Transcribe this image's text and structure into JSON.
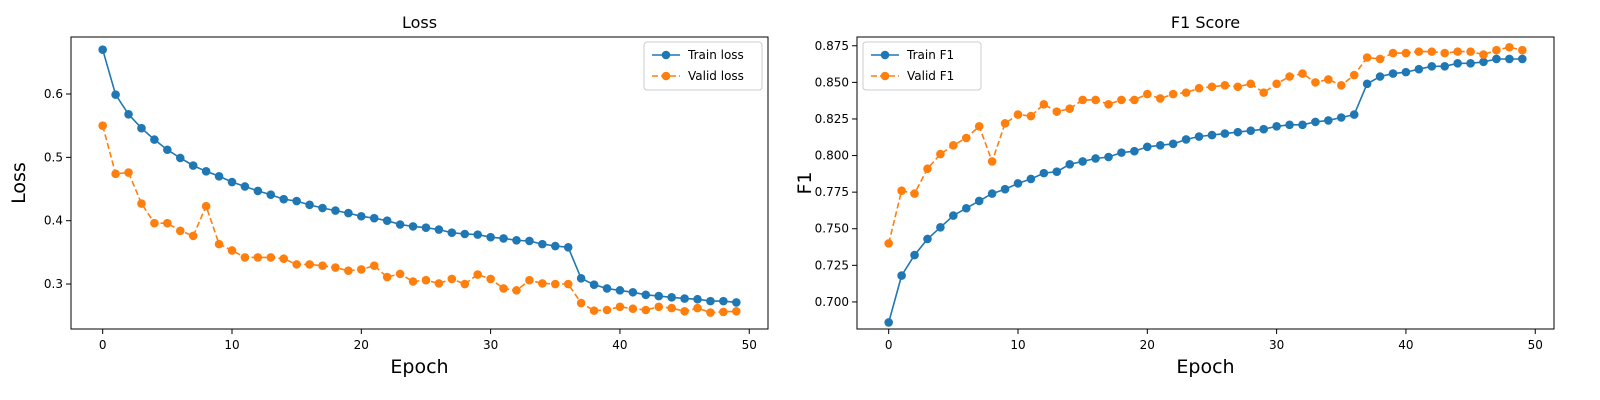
{
  "colors": {
    "train": "#1f77b4",
    "valid": "#ff7f0e"
  },
  "chart_data": [
    {
      "type": "line",
      "title": "Loss",
      "xlabel": "Epoch",
      "ylabel": "Loss",
      "xlim": [
        -2.45,
        51.45
      ],
      "ylim": [
        0.229,
        0.69
      ],
      "xticks": [
        0,
        10,
        20,
        30,
        40,
        50
      ],
      "yticks": [
        0.3,
        0.4,
        0.5,
        0.6
      ],
      "legend": "top-right",
      "grid": false,
      "x": [
        0,
        1,
        2,
        3,
        4,
        5,
        6,
        7,
        8,
        9,
        10,
        11,
        12,
        13,
        14,
        15,
        16,
        17,
        18,
        19,
        20,
        21,
        22,
        23,
        24,
        25,
        26,
        27,
        28,
        29,
        30,
        31,
        32,
        33,
        34,
        35,
        36,
        37,
        38,
        39,
        40,
        41,
        42,
        43,
        44,
        45,
        46,
        47,
        48,
        49
      ],
      "series": [
        {
          "name": "Train loss",
          "style": "solid",
          "values": [
            0.67,
            0.599,
            0.568,
            0.546,
            0.528,
            0.512,
            0.499,
            0.487,
            0.478,
            0.47,
            0.461,
            0.454,
            0.447,
            0.441,
            0.434,
            0.431,
            0.425,
            0.42,
            0.416,
            0.412,
            0.407,
            0.404,
            0.4,
            0.394,
            0.391,
            0.389,
            0.386,
            0.381,
            0.379,
            0.378,
            0.374,
            0.372,
            0.369,
            0.368,
            0.363,
            0.36,
            0.358,
            0.309,
            0.299,
            0.293,
            0.29,
            0.287,
            0.283,
            0.281,
            0.279,
            0.277,
            0.276,
            0.273,
            0.273,
            0.271
          ]
        },
        {
          "name": "Valid loss",
          "style": "dashed",
          "values": [
            0.55,
            0.474,
            0.476,
            0.427,
            0.396,
            0.396,
            0.384,
            0.376,
            0.423,
            0.363,
            0.353,
            0.342,
            0.342,
            0.342,
            0.34,
            0.331,
            0.331,
            0.329,
            0.326,
            0.321,
            0.323,
            0.329,
            0.311,
            0.316,
            0.304,
            0.306,
            0.301,
            0.308,
            0.3,
            0.315,
            0.308,
            0.293,
            0.29,
            0.306,
            0.301,
            0.3,
            0.3,
            0.27,
            0.258,
            0.259,
            0.264,
            0.261,
            0.259,
            0.264,
            0.262,
            0.257,
            0.262,
            0.255,
            0.256,
            0.257
          ]
        }
      ]
    },
    {
      "type": "line",
      "title": "F1 Score",
      "xlabel": "Epoch",
      "ylabel": "F1",
      "xlim": [
        -2.45,
        51.45
      ],
      "ylim": [
        0.6815,
        0.881
      ],
      "xticks": [
        0,
        10,
        20,
        30,
        40,
        50
      ],
      "yticks": [
        0.7,
        0.725,
        0.75,
        0.775,
        0.8,
        0.825,
        0.85,
        0.875
      ],
      "legend": "top-left",
      "grid": false,
      "x": [
        0,
        1,
        2,
        3,
        4,
        5,
        6,
        7,
        8,
        9,
        10,
        11,
        12,
        13,
        14,
        15,
        16,
        17,
        18,
        19,
        20,
        21,
        22,
        23,
        24,
        25,
        26,
        27,
        28,
        29,
        30,
        31,
        32,
        33,
        34,
        35,
        36,
        37,
        38,
        39,
        40,
        41,
        42,
        43,
        44,
        45,
        46,
        47,
        48,
        49
      ],
      "series": [
        {
          "name": "Train F1",
          "style": "solid",
          "values": [
            0.686,
            0.718,
            0.732,
            0.743,
            0.751,
            0.759,
            0.764,
            0.769,
            0.774,
            0.777,
            0.781,
            0.784,
            0.788,
            0.789,
            0.794,
            0.796,
            0.798,
            0.799,
            0.802,
            0.803,
            0.806,
            0.807,
            0.808,
            0.811,
            0.813,
            0.814,
            0.815,
            0.816,
            0.817,
            0.818,
            0.82,
            0.821,
            0.821,
            0.823,
            0.824,
            0.826,
            0.828,
            0.849,
            0.854,
            0.856,
            0.857,
            0.859,
            0.861,
            0.861,
            0.863,
            0.863,
            0.864,
            0.866,
            0.866,
            0.866
          ]
        },
        {
          "name": "Valid F1",
          "style": "dashed",
          "values": [
            0.74,
            0.776,
            0.774,
            0.791,
            0.801,
            0.807,
            0.812,
            0.82,
            0.796,
            0.822,
            0.828,
            0.827,
            0.835,
            0.83,
            0.832,
            0.838,
            0.838,
            0.835,
            0.838,
            0.838,
            0.842,
            0.839,
            0.842,
            0.843,
            0.846,
            0.847,
            0.848,
            0.847,
            0.849,
            0.843,
            0.849,
            0.854,
            0.856,
            0.85,
            0.852,
            0.848,
            0.855,
            0.867,
            0.866,
            0.87,
            0.87,
            0.871,
            0.871,
            0.87,
            0.871,
            0.871,
            0.869,
            0.872,
            0.874,
            0.872
          ]
        }
      ]
    }
  ]
}
